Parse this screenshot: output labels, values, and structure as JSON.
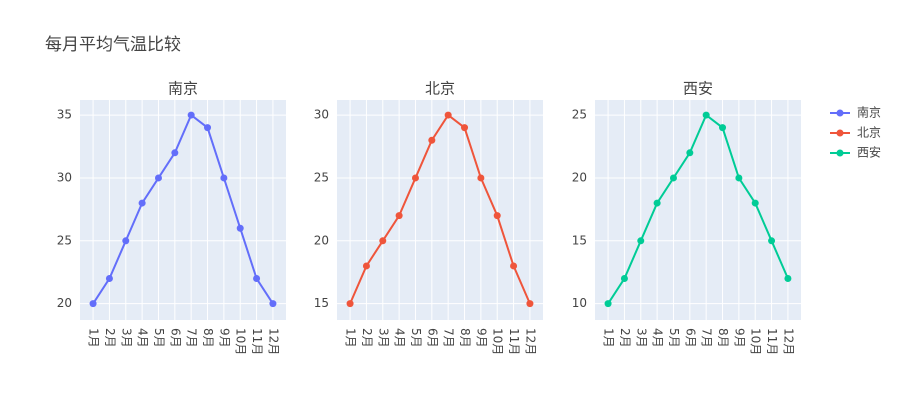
{
  "title": "每月平均气温比较",
  "chart_data": [
    {
      "type": "line",
      "title": "南京",
      "categories": [
        "1月",
        "2月",
        "3月",
        "4月",
        "5月",
        "6月",
        "7月",
        "8月",
        "9月",
        "10月",
        "11月",
        "12月"
      ],
      "series": [
        {
          "name": "南京",
          "color": "#636efa",
          "values": [
            20,
            22,
            25,
            28,
            30,
            32,
            35,
            34,
            30,
            26,
            22,
            20
          ]
        }
      ],
      "ylim": [
        18.7,
        36.2
      ],
      "yticks": [
        20,
        25,
        30,
        35
      ],
      "grid": true
    },
    {
      "type": "line",
      "title": "北京",
      "categories": [
        "1月",
        "2月",
        "3月",
        "4月",
        "5月",
        "6月",
        "7月",
        "8月",
        "9月",
        "10月",
        "11月",
        "12月"
      ],
      "series": [
        {
          "name": "北京",
          "color": "#EF553B",
          "values": [
            15,
            18,
            20,
            22,
            25,
            28,
            30,
            29,
            25,
            22,
            18,
            15
          ]
        }
      ],
      "ylim": [
        13.7,
        31.2
      ],
      "yticks": [
        15,
        20,
        25,
        30
      ],
      "grid": true
    },
    {
      "type": "line",
      "title": "西安",
      "categories": [
        "1月",
        "2月",
        "3月",
        "4月",
        "5月",
        "6月",
        "7月",
        "8月",
        "9月",
        "10月",
        "11月",
        "12月"
      ],
      "series": [
        {
          "name": "西安",
          "color": "#00cc96",
          "values": [
            10,
            12,
            15,
            18,
            20,
            22,
            25,
            24,
            20,
            18,
            15,
            12
          ]
        }
      ],
      "ylim": [
        8.7,
        26.2
      ],
      "yticks": [
        10,
        15,
        20,
        25
      ],
      "grid": true
    }
  ]
}
